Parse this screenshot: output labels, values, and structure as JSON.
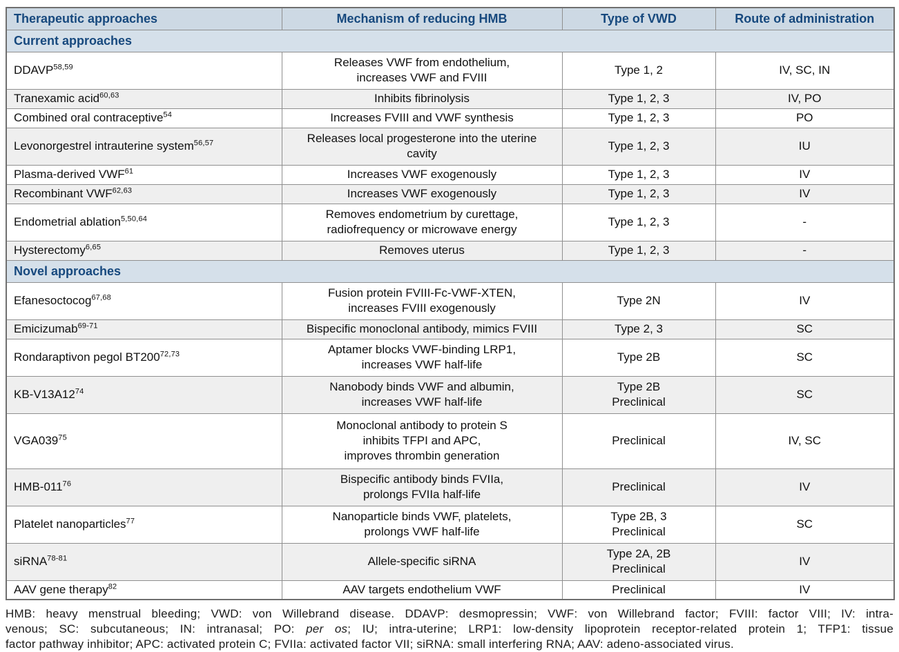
{
  "colors": {
    "header_bg": "#cdd9e4",
    "section_bg": "#d5e0ea",
    "header_text": "#17497e",
    "row_alt_bg": "#efefef",
    "row_bg": "#ffffff",
    "border": "#8f8f8f",
    "body_text": "#111111"
  },
  "table": {
    "headers": [
      "Therapeutic approaches",
      "Mechanism of reducing HMB",
      "Type of VWD",
      "Route of administration"
    ],
    "sections": [
      {
        "label": "Current approaches",
        "rows": [
          {
            "approach": "DDAVP",
            "ref": "58,59",
            "mechanism": [
              "Releases VWF from endothelium,",
              "increases VWF and FVIII"
            ],
            "vwd": [
              "Type 1, 2"
            ],
            "route": "IV, SC, IN"
          },
          {
            "approach": "Tranexamic acid",
            "ref": "60,63",
            "mechanism": [
              "Inhibits fibrinolysis"
            ],
            "vwd": [
              "Type 1, 2, 3"
            ],
            "route": "IV, PO"
          },
          {
            "approach": "Combined oral contraceptive",
            "ref": "54",
            "mechanism": [
              "Increases FVIII and VWF synthesis"
            ],
            "vwd": [
              "Type 1, 2, 3"
            ],
            "route": "PO"
          },
          {
            "approach": "Levonorgestrel intrauterine system",
            "ref": "56,57",
            "mechanism": [
              "Releases local progesterone into the uterine",
              "cavity"
            ],
            "vwd": [
              "Type 1, 2, 3"
            ],
            "route": "IU"
          },
          {
            "approach": "Plasma-derived VWF",
            "ref": "61",
            "mechanism": [
              "Increases VWF exogenously"
            ],
            "vwd": [
              "Type 1, 2, 3"
            ],
            "route": "IV"
          },
          {
            "approach": "Recombinant VWF",
            "ref": "62,63",
            "mechanism": [
              "Increases VWF exogenously"
            ],
            "vwd": [
              "Type 1, 2, 3"
            ],
            "route": "IV"
          },
          {
            "approach": "Endometrial ablation",
            "ref": "5,50,64",
            "mechanism": [
              "Removes endometrium by curettage,",
              "radiofrequency or microwave energy"
            ],
            "vwd": [
              "Type 1, 2, 3"
            ],
            "route": "-"
          },
          {
            "approach": "Hysterectomy",
            "ref": "6,65",
            "mechanism": [
              "Removes uterus"
            ],
            "vwd": [
              "Type 1, 2, 3"
            ],
            "route": "-"
          }
        ]
      },
      {
        "label": "Novel approaches",
        "rows": [
          {
            "approach": "Efanesoctocog",
            "ref": "67,68",
            "mechanism": [
              "Fusion protein FVIII-Fc-VWF-XTEN,",
              "increases FVIII exogenously"
            ],
            "vwd": [
              "Type 2N"
            ],
            "route": "IV"
          },
          {
            "approach": "Emicizumab",
            "ref": "69-71",
            "mechanism": [
              "Bispecific monoclonal antibody, mimics FVIII"
            ],
            "vwd": [
              "Type 2, 3"
            ],
            "route": "SC"
          },
          {
            "approach": "Rondaraptivon pegol BT200",
            "ref": "72,73",
            "mechanism": [
              "Aptamer blocks VWF-binding LRP1,",
              "increases VWF half-life"
            ],
            "vwd": [
              "Type 2B"
            ],
            "route": "SC"
          },
          {
            "approach": "KB-V13A12",
            "ref": "74",
            "mechanism": [
              "Nanobody binds VWF and albumin,",
              "increases VWF half-life"
            ],
            "vwd": [
              "Type 2B",
              "Preclinical"
            ],
            "route": "SC"
          },
          {
            "approach": "VGA039",
            "ref": "75",
            "mechanism": [
              "Monoclonal antibody to protein S",
              "inhibits TFPI and APC,",
              "improves thrombin generation"
            ],
            "vwd": [
              "Preclinical"
            ],
            "route": "IV, SC"
          },
          {
            "approach": "HMB-011",
            "ref": "76",
            "mechanism": [
              "Bispecific antibody binds FVIIa,",
              "prolongs FVIIa half-life"
            ],
            "vwd": [
              "Preclinical"
            ],
            "route": "IV"
          },
          {
            "approach": "Platelet nanoparticles",
            "ref": "77",
            "mechanism": [
              "Nanoparticle binds VWF, platelets,",
              "prolongs VWF half-life"
            ],
            "vwd": [
              "Type 2B, 3",
              "Preclinical"
            ],
            "route": "SC"
          },
          {
            "approach": "siRNA",
            "ref": "78-81",
            "mechanism": [
              "Allele-specific siRNA"
            ],
            "vwd": [
              "Type 2A, 2B",
              "Preclinical"
            ],
            "route": "IV"
          },
          {
            "approach": "AAV gene therapy",
            "ref": "82",
            "mechanism": [
              "AAV targets endothelium VWF"
            ],
            "vwd": [
              "Preclinical"
            ],
            "route": "IV"
          }
        ]
      }
    ]
  },
  "footnote": {
    "line1": "HMB: heavy menstrual bleeding; VWD: von Willebrand disease. DDAVP: desmopressin; VWF: von Willebrand factor; FVIII: factor VIII; IV: intra-",
    "line2_pre": "venous; SC: subcutaneous; IN: intranasal; PO: ",
    "line2_italic": "per os",
    "line2_post": "; IU; intra-uterine; LRP1: low-density lipoprotein receptor-related protein 1; TFP1: tissue",
    "line3": "factor pathway inhibitor; APC: activated protein C; FVIIa: activated factor VII; siRNA: small interfering RNA; AAV: adeno-associated virus."
  }
}
